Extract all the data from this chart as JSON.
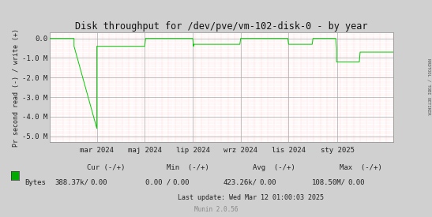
{
  "title": "Disk throughput for /dev/pve/vm-102-disk-0 - by year",
  "ylabel": "Pr second read (-) / write (+)",
  "yticks": [
    0.0,
    -1000000,
    -2000000,
    -3000000,
    -4000000,
    -5000000
  ],
  "ytick_labels": [
    "0.0",
    "-1.0 M",
    "-2.0 M",
    "-3.0 M",
    "-4.0 M",
    "-5.0 M"
  ],
  "ylim": [
    -5300000,
    300000
  ],
  "xtick_labels": [
    "mar 2024",
    "maj 2024",
    "lip 2024",
    "wrz 2024",
    "lis 2024",
    "sty 2025"
  ],
  "bg_color": "#d0d0d0",
  "plot_bg_color": "#ffffff",
  "line_color": "#00cc00",
  "legend_label": "Bytes",
  "legend_color": "#00aa00",
  "footer_text": "Last update: Wed Mar 12 01:00:03 2025",
  "munin_text": "Munin 2.0.56",
  "sidebar_text": "RRDTOOL / TOBI OETIKER",
  "xstart": 1704067200,
  "xend": 1741824000,
  "xtick_positions": [
    1709251200,
    1714521600,
    1719792000,
    1725062400,
    1730332800,
    1735689600
  ],
  "data_x": [
    1704067200,
    1706745600,
    1706745600,
    1709251200,
    1709251200,
    1714521600,
    1714521600,
    1714608000,
    1714608000,
    1717286400,
    1717286400,
    1719792000,
    1719792000,
    1719878400,
    1719878400,
    1722470400,
    1722470400,
    1724976000,
    1724976000,
    1725062400,
    1725062400,
    1727654400,
    1727654400,
    1730246400,
    1730246400,
    1730332800,
    1730332800,
    1732924800,
    1732924800,
    1733011200,
    1733011200,
    1735516800,
    1735516800,
    1735603200,
    1735603200,
    1738108800,
    1738108800,
    1738195200,
    1738195200,
    1740614400,
    1740614400,
    1741824000
  ],
  "data_y": [
    0,
    0,
    -400000,
    -4600000,
    -400000,
    -400000,
    -400000,
    0,
    0,
    0,
    0,
    0,
    0,
    -400000,
    -300000,
    -300000,
    -300000,
    -300000,
    -300000,
    0,
    0,
    0,
    0,
    0,
    0,
    -300000,
    -300000,
    -300000,
    -300000,
    0,
    0,
    0,
    0,
    -500000,
    -1200000,
    -1200000,
    -1200000,
    -700000,
    -700000,
    -700000,
    -700000,
    -700000
  ]
}
